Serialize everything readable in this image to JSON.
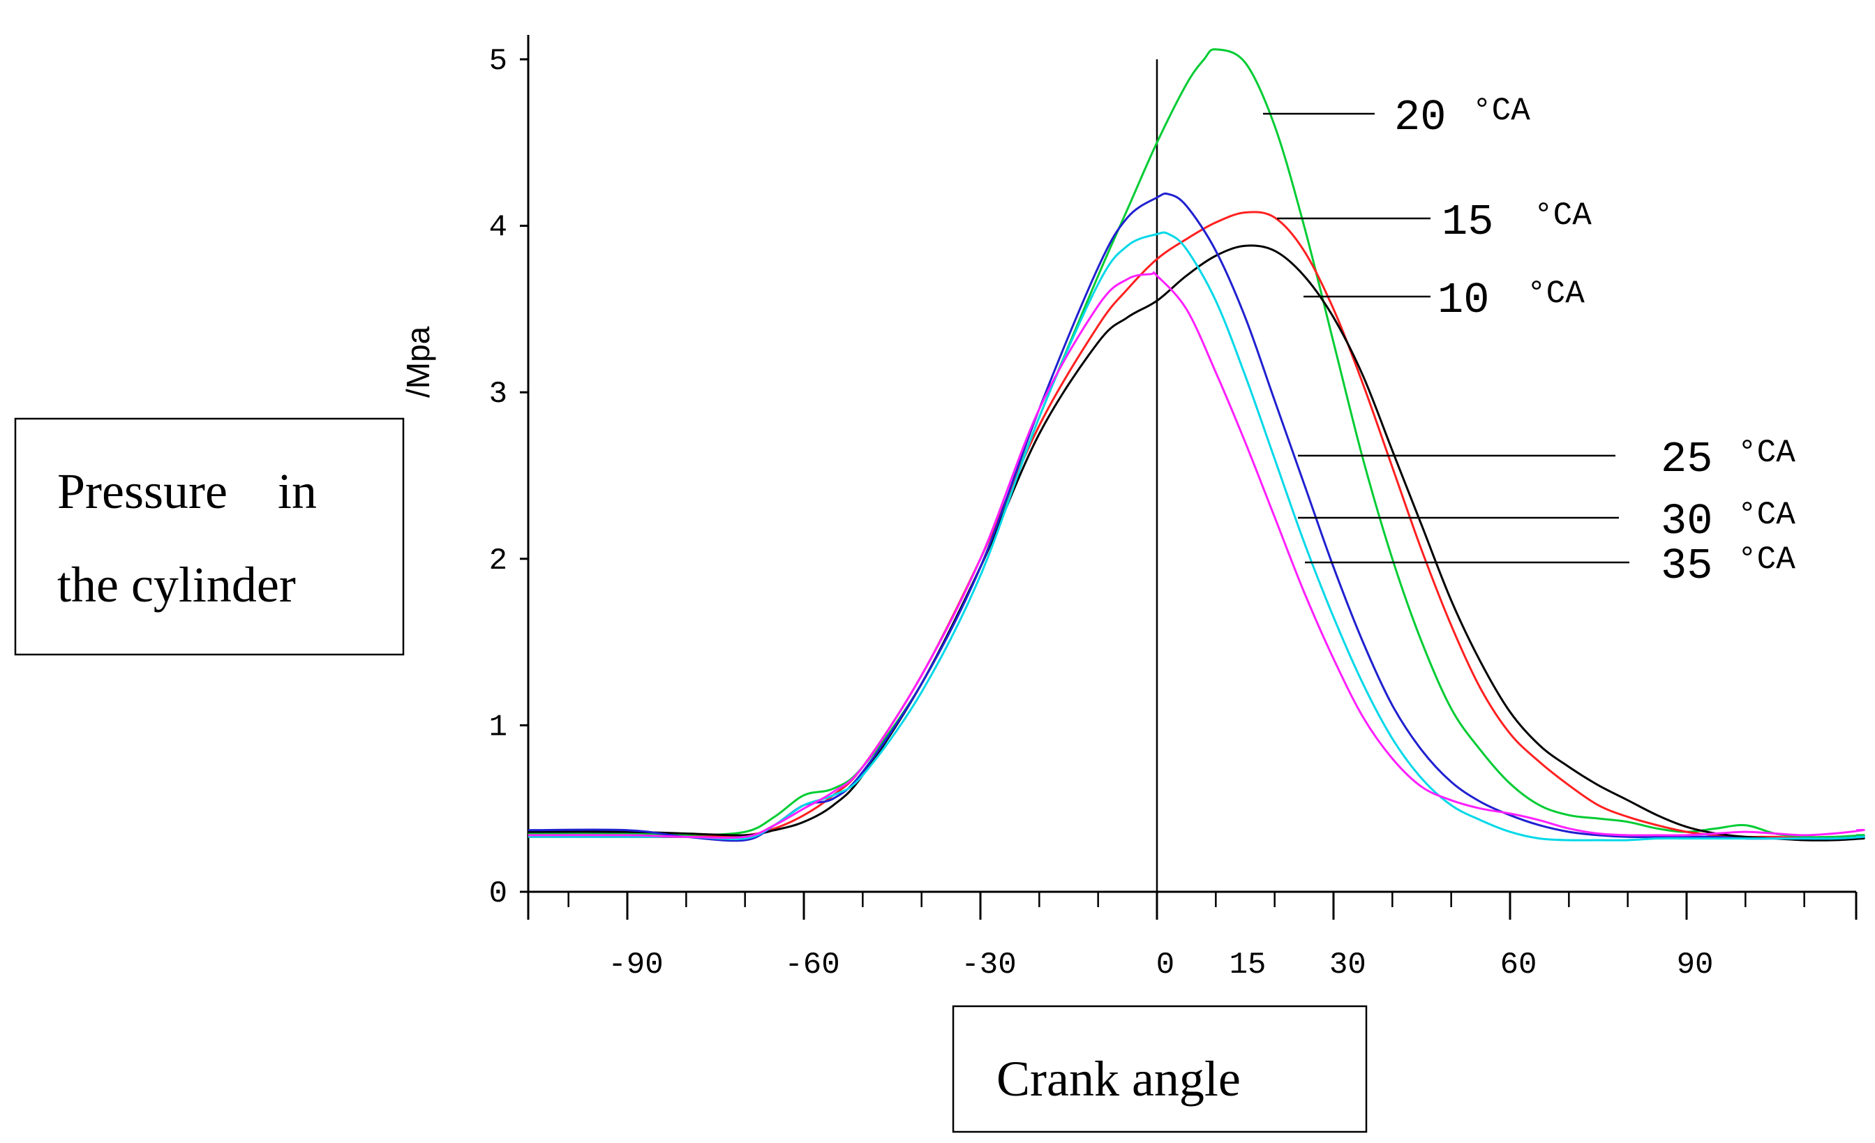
{
  "chart_data": {
    "type": "line",
    "title": "",
    "xlabel": "Crank angle",
    "ylabel_box": [
      "Pressure    in",
      "the cylinder"
    ],
    "ylabel_unit": "/Mpa",
    "xlim": [
      -90,
      125
    ],
    "ylim": [
      0,
      5.2
    ],
    "x_ticks": [
      -90,
      -60,
      -30,
      0,
      15,
      30,
      60,
      90
    ],
    "y_ticks": [
      0,
      1,
      2,
      3,
      4,
      5
    ],
    "vertical_line_x": 0,
    "series": [
      {
        "name": "20",
        "unit": "°CA",
        "color": "#00cc33",
        "x": [
          -90,
          -80,
          -70,
          -65,
          -60,
          -55,
          -50,
          -40,
          -30,
          -20,
          -10,
          -5,
          0,
          5,
          8,
          10,
          15,
          20,
          25,
          30,
          35,
          40,
          45,
          50,
          55,
          60,
          65,
          70,
          75,
          80,
          85,
          90,
          95,
          100,
          105,
          110,
          115,
          120
        ],
        "y": [
          0.35,
          0.34,
          0.36,
          0.45,
          0.58,
          0.62,
          0.75,
          1.25,
          1.95,
          2.85,
          3.7,
          4.1,
          4.5,
          4.85,
          5.0,
          5.06,
          4.98,
          4.6,
          4.0,
          3.3,
          2.6,
          2.0,
          1.5,
          1.1,
          0.85,
          0.65,
          0.52,
          0.46,
          0.44,
          0.42,
          0.38,
          0.36,
          0.38,
          0.4,
          0.35,
          0.33,
          0.33,
          0.34
        ]
      },
      {
        "name": "15",
        "unit": "°CA",
        "color": "#ff2020",
        "x": [
          -90,
          -80,
          -70,
          -65,
          -60,
          -55,
          -50,
          -40,
          -30,
          -20,
          -10,
          -5,
          0,
          5,
          10,
          15,
          20,
          25,
          30,
          35,
          40,
          45,
          50,
          55,
          60,
          65,
          70,
          75,
          80,
          85,
          90,
          95,
          100,
          105,
          110,
          115,
          120
        ],
        "y": [
          0.33,
          0.33,
          0.34,
          0.38,
          0.46,
          0.58,
          0.75,
          1.3,
          2.0,
          2.8,
          3.4,
          3.62,
          3.8,
          3.92,
          4.02,
          4.08,
          4.05,
          3.85,
          3.5,
          3.05,
          2.55,
          2.05,
          1.6,
          1.22,
          0.95,
          0.78,
          0.64,
          0.52,
          0.45,
          0.4,
          0.36,
          0.34,
          0.33,
          0.33,
          0.32,
          0.32,
          0.33
        ]
      },
      {
        "name": "10",
        "unit": "°CA",
        "color": "#000000",
        "x": [
          -90,
          -80,
          -70,
          -65,
          -60,
          -55,
          -50,
          -40,
          -30,
          -20,
          -10,
          -5,
          0,
          5,
          10,
          15,
          20,
          25,
          30,
          35,
          40,
          45,
          50,
          55,
          60,
          65,
          70,
          75,
          80,
          85,
          90,
          95,
          100,
          105,
          110,
          115,
          120
        ],
        "y": [
          0.36,
          0.35,
          0.34,
          0.37,
          0.42,
          0.52,
          0.7,
          1.25,
          1.95,
          2.75,
          3.3,
          3.45,
          3.55,
          3.7,
          3.82,
          3.88,
          3.85,
          3.7,
          3.45,
          3.1,
          2.65,
          2.2,
          1.75,
          1.38,
          1.08,
          0.88,
          0.75,
          0.64,
          0.55,
          0.46,
          0.39,
          0.35,
          0.33,
          0.32,
          0.31,
          0.31,
          0.32
        ]
      },
      {
        "name": "25",
        "unit": "°CA",
        "color": "#2020d0",
        "x": [
          -90,
          -80,
          -70,
          -65,
          -60,
          -55,
          -50,
          -40,
          -30,
          -20,
          -10,
          -5,
          0,
          2,
          5,
          10,
          15,
          20,
          25,
          30,
          35,
          40,
          45,
          50,
          55,
          60,
          65,
          70,
          75,
          80,
          85,
          90,
          95,
          100,
          105,
          110,
          115,
          120
        ],
        "y": [
          0.37,
          0.33,
          0.31,
          0.4,
          0.52,
          0.56,
          0.72,
          1.25,
          1.95,
          2.9,
          3.75,
          4.05,
          4.17,
          4.19,
          4.12,
          3.85,
          3.45,
          2.95,
          2.45,
          1.95,
          1.5,
          1.12,
          0.85,
          0.66,
          0.54,
          0.46,
          0.4,
          0.36,
          0.34,
          0.33,
          0.33,
          0.33,
          0.33,
          0.32,
          0.32,
          0.32,
          0.32,
          0.33
        ]
      },
      {
        "name": "30",
        "unit": "°CA",
        "color": "#00d8e8",
        "x": [
          -90,
          -80,
          -70,
          -65,
          -60,
          -55,
          -50,
          -40,
          -30,
          -20,
          -10,
          -5,
          0,
          2,
          5,
          10,
          15,
          20,
          25,
          30,
          35,
          40,
          45,
          50,
          55,
          60,
          65,
          70,
          75,
          80,
          85,
          90,
          95,
          100,
          105,
          110,
          115,
          120
        ],
        "y": [
          0.33,
          0.33,
          0.32,
          0.4,
          0.52,
          0.58,
          0.7,
          1.2,
          1.9,
          2.85,
          3.65,
          3.88,
          3.95,
          3.95,
          3.86,
          3.55,
          3.1,
          2.6,
          2.1,
          1.65,
          1.25,
          0.92,
          0.68,
          0.52,
          0.43,
          0.36,
          0.32,
          0.31,
          0.31,
          0.31,
          0.32,
          0.32,
          0.32,
          0.32,
          0.32,
          0.32,
          0.32,
          0.33
        ]
      },
      {
        "name": "35",
        "unit": "°CA",
        "color": "#ff20ff",
        "x": [
          -90,
          -80,
          -70,
          -65,
          -60,
          -55,
          -50,
          -40,
          -30,
          -20,
          -10,
          -5,
          -1,
          0,
          5,
          10,
          15,
          20,
          25,
          30,
          35,
          40,
          45,
          50,
          55,
          60,
          65,
          70,
          75,
          80,
          85,
          90,
          95,
          100,
          105,
          110,
          115,
          120
        ],
        "y": [
          0.34,
          0.33,
          0.33,
          0.4,
          0.5,
          0.6,
          0.75,
          1.3,
          2.0,
          2.9,
          3.52,
          3.68,
          3.71,
          3.7,
          3.5,
          3.12,
          2.7,
          2.25,
          1.8,
          1.4,
          1.05,
          0.8,
          0.63,
          0.55,
          0.5,
          0.47,
          0.43,
          0.38,
          0.35,
          0.34,
          0.34,
          0.34,
          0.35,
          0.36,
          0.35,
          0.34,
          0.35,
          0.37
        ]
      }
    ],
    "annotations": [
      {
        "series": "20",
        "point_x": 30
      },
      {
        "series": "15",
        "point_x": 32
      },
      {
        "series": "10",
        "point_x": 40
      },
      {
        "series": "25",
        "point_x": 40
      },
      {
        "series": "30",
        "point_x": 40
      },
      {
        "series": "35",
        "point_x": 40
      }
    ]
  }
}
